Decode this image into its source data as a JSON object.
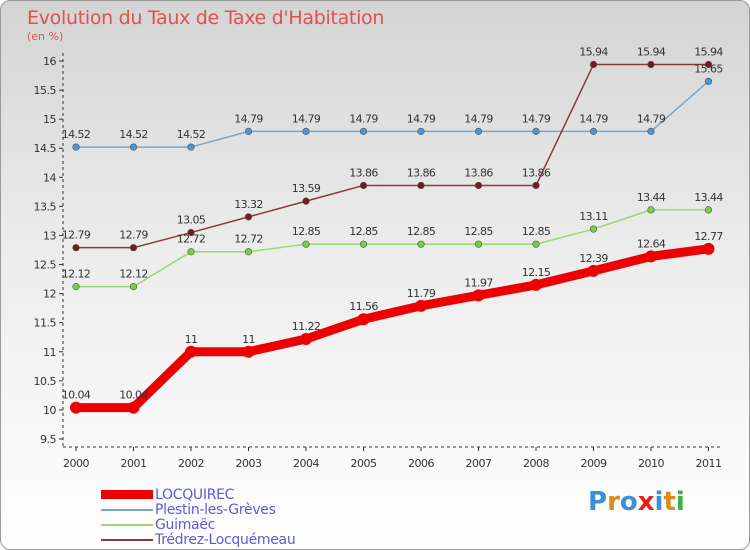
{
  "header": {
    "title": "Evolution du Taux de Taxe d'Habitation",
    "subtitle": "(en %)"
  },
  "logo": {
    "text": "Proxiti",
    "colors": [
      "#3a8fd8",
      "#e08a1e",
      "#3a8fd8",
      "#e0231e",
      "#3a8fd8",
      "#e08a1e",
      "#3ab048"
    ]
  },
  "chart_data": {
    "type": "line",
    "title": "Evolution du Taux de Taxe d'Habitation",
    "ylabel": "(en %)",
    "xlabel": "",
    "x": [
      "2000",
      "2001",
      "2002",
      "2003",
      "2004",
      "2005",
      "2006",
      "2007",
      "2008",
      "2009",
      "2010",
      "2011"
    ],
    "ylim": [
      9.5,
      16
    ],
    "yticks": [
      "9.5",
      "10",
      "10.5",
      "11",
      "11.5",
      "12",
      "12.5",
      "13",
      "13.5",
      "14",
      "14.5",
      "15",
      "15.5",
      "16"
    ],
    "grid": false,
    "legend_position": "bottom-left",
    "series": [
      {
        "name": "LOCQUIREC",
        "color": "#ee0000",
        "marker_color": "#ee0000",
        "width": 9,
        "values": [
          10.04,
          10.04,
          11,
          11,
          11.22,
          11.56,
          11.79,
          11.97,
          12.15,
          12.39,
          12.64,
          12.77
        ],
        "labels": [
          "10.04",
          "10.04",
          "11",
          "11",
          "11.22",
          "11.56",
          "11.79",
          "11.97",
          "12.15",
          "12.39",
          "12.64",
          "12.77"
        ]
      },
      {
        "name": "Plestin-les-Grèves",
        "color": "#7aa6cc",
        "marker_color": "#4f96d6",
        "width": 1.5,
        "values": [
          14.52,
          14.52,
          14.52,
          14.79,
          14.79,
          14.79,
          14.79,
          14.79,
          14.79,
          14.79,
          14.79,
          15.65
        ],
        "labels": [
          "14.52",
          "14.52",
          "14.52",
          "14.79",
          "14.79",
          "14.79",
          "14.79",
          "14.79",
          "14.79",
          "14.79",
          "14.79",
          "15.65"
        ]
      },
      {
        "name": "Guimaëc",
        "color": "#9ad86a",
        "marker_color": "#7acc48",
        "width": 1.5,
        "values": [
          12.12,
          12.12,
          12.72,
          12.72,
          12.85,
          12.85,
          12.85,
          12.85,
          12.85,
          13.11,
          13.44,
          13.44
        ],
        "labels": [
          "12.12",
          "12.12",
          "12.72",
          "12.72",
          "12.85",
          "12.85",
          "12.85",
          "12.85",
          "12.85",
          "13.11",
          "13.44",
          "13.44"
        ]
      },
      {
        "name": "Trédrez-Locquémeau",
        "color": "#8a3a3a",
        "marker_color": "#6e1e1e",
        "width": 1.5,
        "values": [
          12.79,
          12.79,
          13.05,
          13.32,
          13.59,
          13.86,
          13.86,
          13.86,
          13.86,
          15.94,
          15.94,
          15.94
        ],
        "labels": [
          "12.79",
          "12.79",
          "13.05",
          "13.32",
          "13.59",
          "13.86",
          "13.86",
          "13.86",
          "13.86",
          "15.94",
          "15.94",
          "15.94"
        ]
      }
    ]
  }
}
